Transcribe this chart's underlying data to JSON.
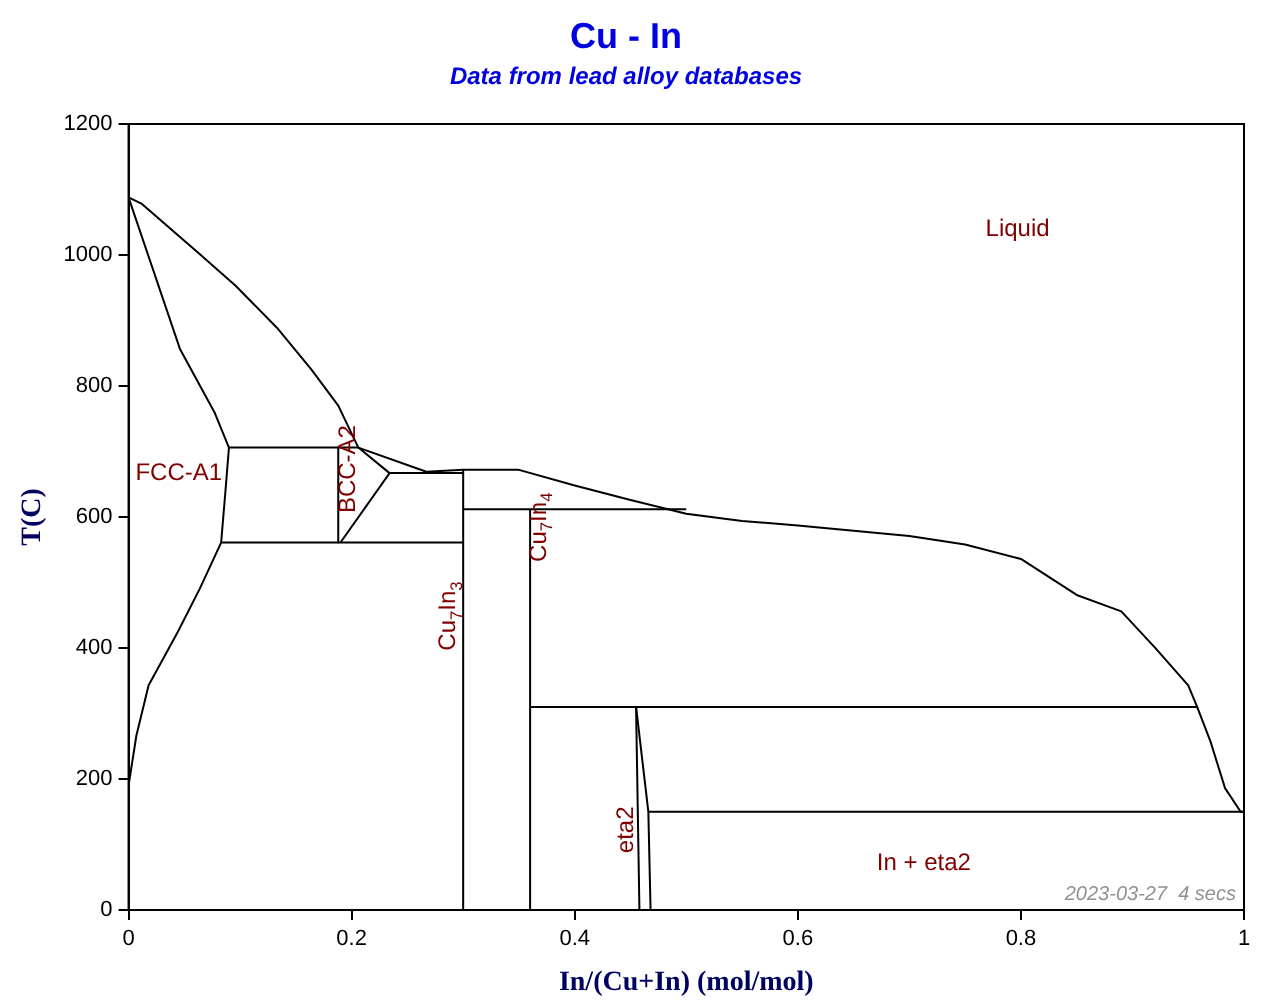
{
  "chart_data": {
    "type": "line",
    "title": "Cu - In",
    "subtitle": "Data from lead alloy databases",
    "xlabel": "In/(Cu+In) (mol/mol)",
    "ylabel": "T(C)",
    "xlim": [
      0,
      1
    ],
    "xticks": [
      0,
      0.2,
      0.4,
      0.6,
      0.8,
      1
    ],
    "ylim": [
      0,
      1200
    ],
    "yticks": [
      0,
      200,
      400,
      600,
      800,
      1000,
      1200
    ],
    "grid": false,
    "legend": false,
    "marker": "none",
    "line_style": "solid",
    "series": [
      {
        "color": "#000000",
        "x": [
          0,
          0.012,
          0.064,
          0.096,
          0.133,
          0.164,
          0.188,
          0.206,
          0.267,
          0.3,
          0.35,
          0.4,
          0.45,
          0.5,
          0.55,
          0.6,
          0.7,
          0.75,
          0.8,
          0.85,
          0.89,
          0.92,
          0.95,
          0.958,
          0.97,
          0.983,
          0.997,
          1
        ],
        "values": [
          1088,
          1078,
          1001,
          953,
          889,
          825,
          770,
          706,
          669,
          672,
          672,
          648,
          626,
          605,
          594,
          587,
          571,
          558,
          536,
          481,
          456,
          401,
          343,
          310,
          257,
          186,
          150,
          150
        ]
      },
      {
        "color": "#000000",
        "x": [
          0,
          0.046,
          0.077,
          0.09,
          0.087,
          0.083,
          0.064,
          0.044,
          0.018,
          0.007,
          0
        ],
        "values": [
          1088,
          857,
          760,
          706,
          642,
          561,
          491,
          424,
          343,
          266,
          190
        ]
      },
      {
        "color": "#000000",
        "x": [
          0.09,
          0.206
        ],
        "values": [
          706,
          706
        ]
      },
      {
        "color": "#000000",
        "x": [
          0.188,
          0.188
        ],
        "values": [
          706,
          561
        ]
      },
      {
        "color": "#000000",
        "x": [
          0.206,
          0.234,
          0.19
        ],
        "values": [
          706,
          667,
          561
        ]
      },
      {
        "color": "#000000",
        "x": [
          0.234,
          0.3
        ],
        "values": [
          667,
          667
        ]
      },
      {
        "color": "#000000",
        "x": [
          0.083,
          0.3
        ],
        "values": [
          561,
          561
        ]
      },
      {
        "color": "#000000",
        "x": [
          0.3,
          0.3
        ],
        "values": [
          0,
          672
        ]
      },
      {
        "color": "#000000",
        "x": [
          0.36,
          0.36
        ],
        "values": [
          0,
          612
        ]
      },
      {
        "color": "#000000",
        "x": [
          0.3,
          0.5
        ],
        "values": [
          612,
          612
        ]
      },
      {
        "color": "#000000",
        "x": [
          0.36,
          0.958
        ],
        "values": [
          310,
          310
        ]
      },
      {
        "color": "#000000",
        "x": [
          0.455,
          0.458
        ],
        "values": [
          310,
          0
        ]
      },
      {
        "color": "#000000",
        "x": [
          0.455,
          0.466,
          0.468
        ],
        "values": [
          310,
          150,
          0
        ]
      },
      {
        "color": "#000000",
        "x": [
          0.466,
          1
        ],
        "values": [
          150,
          150
        ]
      }
    ],
    "annotations": [
      "Liquid",
      "FCC-A1",
      "BCC-A2",
      "Cu$_{7}$In$_{3}$",
      "Cu$_{7}$In$_{4}$",
      "eta2",
      "In + eta2",
      "2023-03-27  4 secs"
    ]
  }
}
